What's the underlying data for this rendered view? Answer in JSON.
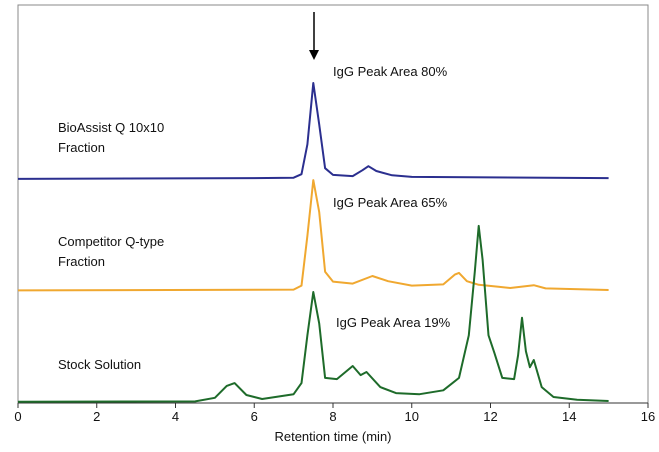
{
  "chart_data": {
    "type": "line",
    "x_label": "Retention time (min)",
    "xlim": [
      0,
      16
    ],
    "xticks": [
      0,
      2,
      4,
      6,
      8,
      10,
      12,
      14,
      16
    ],
    "ylim": [
      0,
      100
    ],
    "annotations": [
      "IgG Peak Area 80%",
      "IgG Peak Area 65%",
      "IgG Peak Area 19%"
    ],
    "series": [
      {
        "name": "BioAssist Q 10x10 Fraction",
        "color": "#2b2f8f",
        "x": [
          0,
          6,
          7,
          7.2,
          7.35,
          7.5,
          7.65,
          7.8,
          8,
          8.5,
          8.75,
          8.9,
          9.1,
          9.5,
          10,
          15
        ],
        "values": [
          56.3,
          56.5,
          56.6,
          57.5,
          65,
          80.4,
          70,
          59,
          57.3,
          57,
          58.5,
          59.5,
          58.3,
          57.2,
          56.8,
          56.5
        ]
      },
      {
        "name": "Competitor Q-type Fraction",
        "color": "#f0a830",
        "x": [
          0,
          7,
          7.2,
          7.35,
          7.5,
          7.65,
          7.8,
          8,
          8.5,
          9,
          9.4,
          10,
          10.8,
          11.1,
          11.2,
          11.4,
          11.7,
          12.2,
          12.5,
          13.1,
          13.4,
          15
        ],
        "values": [
          28.3,
          28.5,
          29.5,
          42,
          56,
          48,
          33,
          30.5,
          30,
          31.9,
          30.6,
          29.5,
          29.8,
          32.3,
          32.7,
          30.6,
          29.7,
          29.2,
          28.9,
          29.6,
          28.8,
          28.4
        ]
      },
      {
        "name": "Stock Solution",
        "color": "#1e6b2a",
        "x": [
          0,
          4.5,
          5.0,
          5.3,
          5.5,
          5.8,
          6.2,
          7.0,
          7.2,
          7.35,
          7.5,
          7.65,
          7.8,
          8.1,
          8.5,
          8.7,
          8.85,
          9.2,
          9.6,
          10.2,
          10.8,
          11.2,
          11.45,
          11.6,
          11.7,
          11.8,
          11.95,
          12.1,
          12.3,
          12.6,
          12.7,
          12.8,
          12.9,
          13.0,
          13.1,
          13.3,
          13.6,
          14.2,
          15
        ],
        "values": [
          0.3,
          0.4,
          1.3,
          4.3,
          5,
          2,
          1,
          2.2,
          5,
          17,
          27.9,
          20,
          6.3,
          6,
          9.3,
          7,
          7.8,
          4,
          2.5,
          2.2,
          3.2,
          6.3,
          17,
          33,
          44.5,
          36,
          17,
          12.6,
          6.3,
          6,
          12,
          21.4,
          13,
          9,
          10.8,
          4,
          1.5,
          0.8,
          0.5
        ]
      }
    ]
  }
}
